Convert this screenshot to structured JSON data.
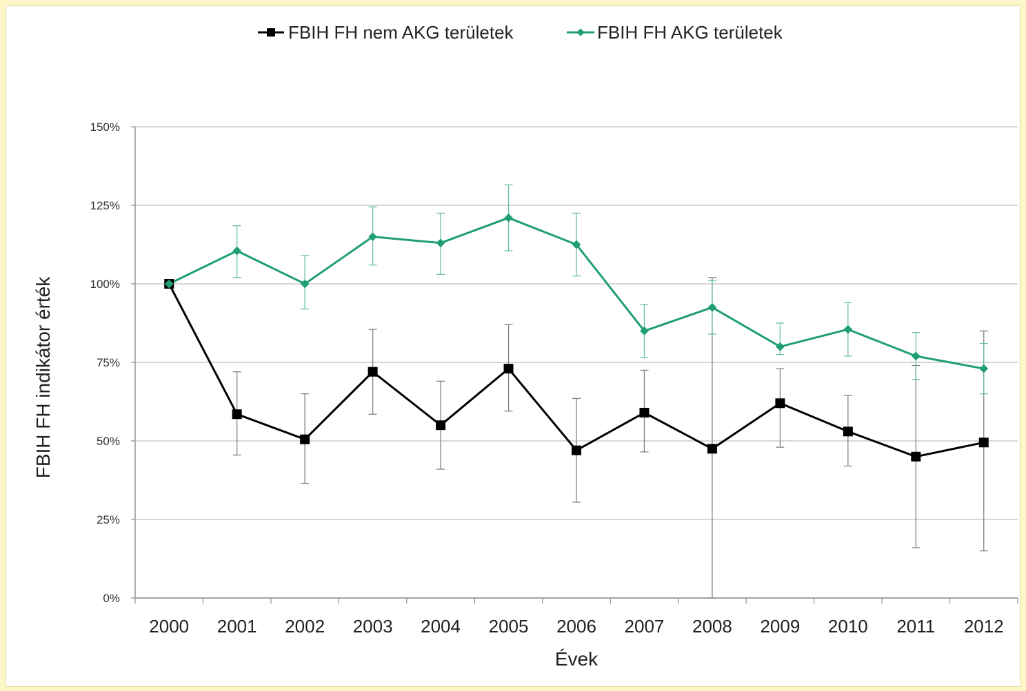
{
  "chart_data": {
    "type": "line",
    "title": "",
    "xlabel": "Évek",
    "ylabel": "FBIH FH indikátor érték",
    "x": [
      "2000",
      "2001",
      "2002",
      "2003",
      "2004",
      "2005",
      "2006",
      "2007",
      "2008",
      "2009",
      "2010",
      "2011",
      "2012"
    ],
    "yticks": [
      "0%",
      "25%",
      "50%",
      "75%",
      "100%",
      "125%",
      "150%"
    ],
    "ylim": [
      0,
      150
    ],
    "grid": true,
    "legend_position": "top",
    "series": [
      {
        "name": "FBIH FH nem AKG területek",
        "color": "#000000",
        "marker": "square",
        "values": [
          100,
          58.5,
          50.5,
          72,
          55,
          73,
          47,
          59,
          47.5,
          62,
          53,
          45,
          49.5
        ],
        "err_low": [
          100,
          45.5,
          36.5,
          58.5,
          41,
          59.5,
          30.5,
          46.5,
          0,
          48,
          42,
          16,
          15
        ],
        "err_high": [
          100,
          72,
          65,
          85.5,
          69,
          87,
          63.5,
          72.5,
          102,
          73,
          64.5,
          74,
          85
        ]
      },
      {
        "name": "FBIH FH AKG területek",
        "color": "#1f9e76",
        "marker": "diamond",
        "values": [
          100,
          110.5,
          100,
          115,
          113,
          121,
          112.5,
          85,
          92.5,
          80,
          85.5,
          77,
          73
        ],
        "err_low": [
          100,
          102,
          92,
          106,
          103,
          110.5,
          102.5,
          76.5,
          84,
          77.5,
          77,
          69.5,
          65
        ],
        "err_high": [
          100,
          118.5,
          109,
          124.5,
          122.5,
          131.5,
          122.5,
          93.5,
          101,
          87.5,
          94,
          84.5,
          81
        ]
      }
    ]
  }
}
